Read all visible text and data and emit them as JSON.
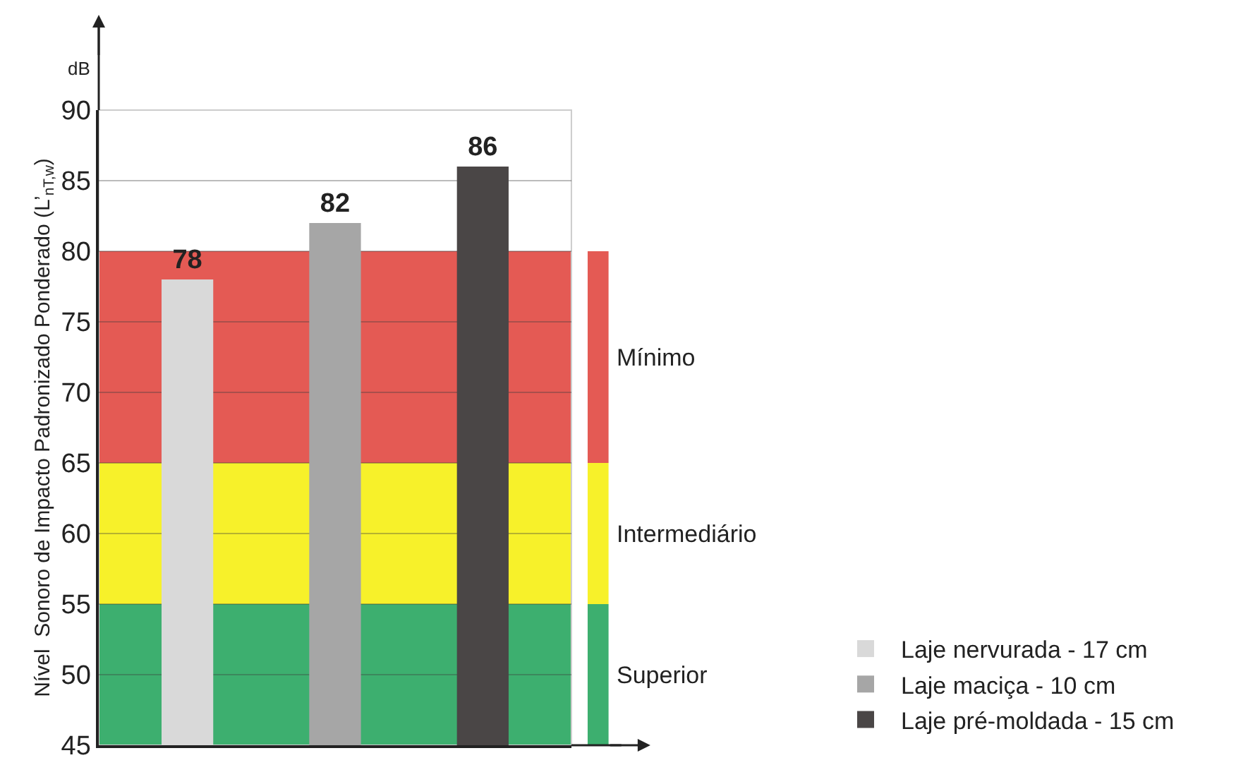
{
  "chart_data": {
    "type": "bar",
    "ylabel": "Nível  Sonoro de Impacto Padronizado Ponderado (L’$_{nT,w}$)",
    "categories": [
      null,
      null,
      null
    ],
    "series": [
      {
        "name": "Laje nervurada - 17 cm",
        "color": "#d9d9d9",
        "values": [
          78,
          null,
          null
        ]
      },
      {
        "name": "Laje maciça - 10 cm",
        "color": "#a6a6a6",
        "values": [
          null,
          82,
          null
        ]
      },
      {
        "name": "Laje pré-moldada - 15 cm",
        "color": "#4a4646",
        "values": [
          null,
          null,
          86
        ]
      }
    ],
    "ylim": [
      45,
      90
    ],
    "yticks": [
      45,
      50,
      55,
      60,
      65,
      70,
      75,
      80,
      85,
      90
    ],
    "grid": "y",
    "bands": [
      {
        "axis": "y",
        "from": 65,
        "to": 80,
        "label": "Mínimo",
        "color": "#e45a54"
      },
      {
        "axis": "y",
        "from": 55,
        "to": 65,
        "label": "Intermediário",
        "color": "#f7f12a"
      },
      {
        "axis": "y",
        "from": 45,
        "to": 55,
        "label": "Superior",
        "color": "#3daf6f"
      }
    ],
    "annotations": [
      "dB"
    ],
    "data_labels": true,
    "legend": "bottom right"
  }
}
